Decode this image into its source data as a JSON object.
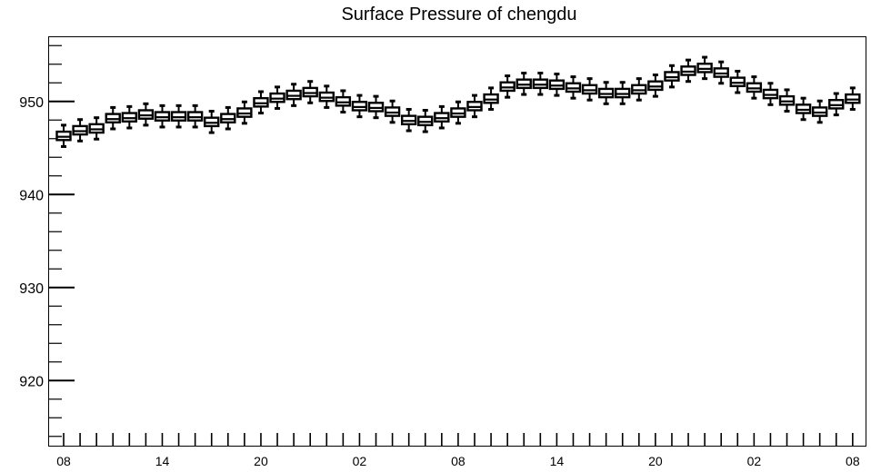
{
  "chart_data": {
    "type": "boxplot",
    "title": "Surface Pressure of chengdu",
    "xlabel": "",
    "ylabel": "",
    "ylim": [
      913,
      957
    ],
    "xlim": [
      0,
      49
    ],
    "yticks": [
      920,
      930,
      940,
      950
    ],
    "xtick_labels": [
      {
        "x": 0,
        "label": "08"
      },
      {
        "x": 6,
        "label": "14"
      },
      {
        "x": 12,
        "label": "20"
      },
      {
        "x": 18,
        "label": "02"
      },
      {
        "x": 24,
        "label": "08"
      },
      {
        "x": 30,
        "label": "14"
      },
      {
        "x": 36,
        "label": "20"
      },
      {
        "x": 42,
        "label": "02"
      },
      {
        "x": 48,
        "label": "08"
      }
    ],
    "grid": false,
    "legend": "none",
    "colors": {
      "box_fill": "#ffffff",
      "stroke": "#000000"
    },
    "series": [
      {
        "values": [
          946.3,
          946.9,
          947.1,
          948.2,
          948.3,
          948.6,
          948.4,
          948.4,
          948.4,
          947.8,
          948.2,
          948.8,
          949.9,
          950.4,
          950.7,
          951.0,
          950.5,
          950.0,
          949.5,
          949.4,
          948.9,
          948.0,
          947.9,
          948.3,
          948.8,
          949.5,
          950.3,
          951.6,
          951.9,
          951.9,
          951.8,
          951.5,
          951.3,
          950.9,
          950.9,
          951.3,
          951.7,
          952.7,
          953.3,
          953.6,
          953.1,
          952.1,
          951.5,
          950.8,
          950.1,
          949.2,
          948.9,
          949.7,
          950.3
        ]
      }
    ]
  }
}
